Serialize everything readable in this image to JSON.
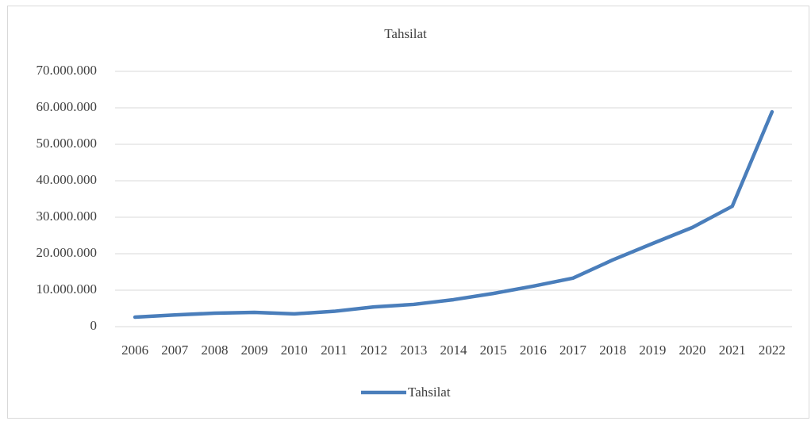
{
  "chart_data": {
    "type": "line",
    "title": "Tahsilat",
    "categories": [
      "2006",
      "2007",
      "2008",
      "2009",
      "2010",
      "2011",
      "2012",
      "2013",
      "2014",
      "2015",
      "2016",
      "2017",
      "2018",
      "2019",
      "2020",
      "2021",
      "2022"
    ],
    "series": [
      {
        "name": "Tahsilat",
        "color": "#4a7ebb",
        "values": [
          2600000,
          3200000,
          3700000,
          3900000,
          3500000,
          4200000,
          5400000,
          6100000,
          7400000,
          9100000,
          11100000,
          13300000,
          18300000,
          22800000,
          27200000,
          33000000,
          58900000
        ]
      }
    ],
    "ylim": [
      0,
      70000000
    ],
    "yticks": [
      0,
      {
        "value": 10000000,
        "label": "10.000.000"
      },
      {
        "value": 20000000,
        "label": "20.000.000"
      },
      {
        "value": 30000000,
        "label": "30.000.000"
      },
      {
        "value": 40000000,
        "label": "40.000.000"
      },
      {
        "value": 50000000,
        "label": "50.000.000"
      },
      {
        "value": 60000000,
        "label": "60.000.000"
      },
      {
        "value": 70000000,
        "label": "70.000.000"
      }
    ],
    "grid": true,
    "legend": "bottom"
  }
}
